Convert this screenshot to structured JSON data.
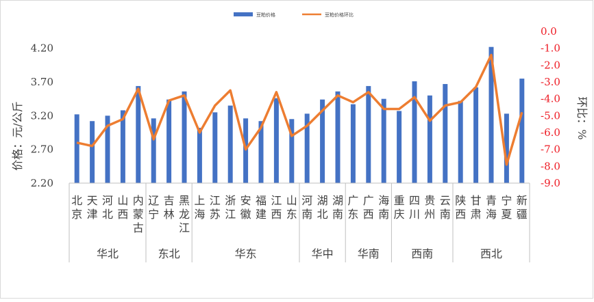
{
  "chart_data": {
    "type": "bar+line",
    "title": "",
    "legend": {
      "position": "top-center",
      "entries": [
        "豆粕价格",
        "豆粕价格环比"
      ]
    },
    "ylabel_left": "价格：元/公斤",
    "ylabel_right": "环比：%",
    "ylim_left": [
      2.2,
      4.45
    ],
    "yticks_left": [
      "2.20",
      "2.70",
      "3.20",
      "3.70",
      "4.20"
    ],
    "ylim_right": [
      -9.0,
      0.0
    ],
    "yticks_right": [
      "0.0",
      "-1.0",
      "-2.0",
      "-3.0",
      "-4.0",
      "-5.0",
      "-6.0",
      "-7.0",
      "-8.0",
      "-9.0"
    ],
    "grid": false,
    "colors": {
      "bar": "#4472c4",
      "line": "#ed7d31",
      "right_axis": "#ee1c25"
    },
    "categories": [
      "北京",
      "天津",
      "河北",
      "山西",
      "内蒙古",
      "辽宁",
      "吉林",
      "黑龙江",
      "上海",
      "江苏",
      "浙江",
      "安徽",
      "福建",
      "江西",
      "山东",
      "河南",
      "湖北",
      "湖南",
      "广东",
      "广西",
      "海南",
      "重庆",
      "四川",
      "贵州",
      "云南",
      "陕西",
      "甘肃",
      "青海",
      "宁夏",
      "新疆"
    ],
    "regions": [
      {
        "name": "华北",
        "count": 5
      },
      {
        "name": "东北",
        "count": 3
      },
      {
        "name": "华东",
        "count": 7
      },
      {
        "name": "华中",
        "count": 3
      },
      {
        "name": "华南",
        "count": 3
      },
      {
        "name": "西南",
        "count": 4
      },
      {
        "name": "西北",
        "count": 5
      }
    ],
    "series": [
      {
        "name": "豆粕价格",
        "type": "bar",
        "axis": "left",
        "values": [
          3.22,
          3.12,
          3.2,
          3.28,
          3.64,
          3.16,
          3.44,
          3.56,
          3.02,
          3.25,
          3.35,
          3.16,
          3.12,
          3.46,
          3.15,
          3.23,
          3.44,
          3.56,
          3.37,
          3.64,
          3.45,
          3.27,
          3.71,
          3.5,
          3.67,
          3.42,
          3.62,
          4.22,
          3.23,
          3.75
        ]
      },
      {
        "name": "豆粕价格环比",
        "type": "line",
        "axis": "right",
        "values": [
          -6.6,
          -6.8,
          -5.6,
          -5.2,
          -3.4,
          -6.4,
          -4.1,
          -3.8,
          -6.0,
          -4.4,
          -3.5,
          -7.0,
          -5.7,
          -3.6,
          -6.2,
          -5.6,
          -4.7,
          -3.8,
          -4.2,
          -3.6,
          -4.6,
          -4.6,
          -3.9,
          -5.3,
          -4.4,
          -4.2,
          -3.3,
          -1.4,
          -7.9,
          -4.8
        ]
      }
    ]
  }
}
